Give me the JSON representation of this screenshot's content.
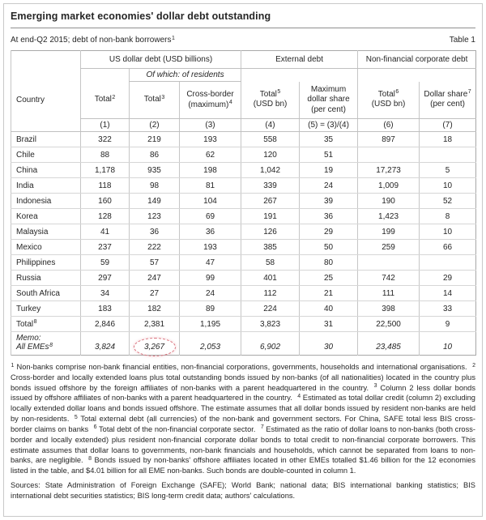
{
  "header": {
    "title": "Emerging market economies' dollar debt outstanding",
    "subtitle": "At end-Q2 2015; debt of non-bank borrowers",
    "subtitle_sup": "1",
    "table_label": "Table 1"
  },
  "table": {
    "country_header": "Country",
    "groups": {
      "usd_debt": "US dollar debt (USD billions)",
      "of_which": "Of which: of residents",
      "external": "External debt",
      "nonfin": "Non-financial corporate debt"
    },
    "columns": [
      {
        "title": "Total",
        "sup": "2",
        "note": ""
      },
      {
        "title": "Total",
        "sup": "3",
        "note": ""
      },
      {
        "title": "Cross-border",
        "sup": "4",
        "note": "(maximum)"
      },
      {
        "title": "Total",
        "sup": "5",
        "note": "(USD bn)"
      },
      {
        "title": "Maximum dollar share",
        "sup": "",
        "note": "(per cent)"
      },
      {
        "title": "Total",
        "sup": "6",
        "note": "(USD bn)"
      },
      {
        "title": "Dollar share",
        "sup": "7",
        "note": "(per cent)"
      }
    ],
    "column_numbers": [
      "(1)",
      "(2)",
      "(3)",
      "(4)",
      "(5) = (3)/(4)",
      "(6)",
      "(7)"
    ],
    "rows": [
      {
        "country": "Brazil",
        "values": [
          "322",
          "219",
          "193",
          "558",
          "35",
          "897",
          "18"
        ]
      },
      {
        "country": "Chile",
        "values": [
          "88",
          "86",
          "62",
          "120",
          "51",
          "",
          ""
        ]
      },
      {
        "country": "China",
        "values": [
          "1,178",
          "935",
          "198",
          "1,042",
          "19",
          "17,273",
          "5"
        ]
      },
      {
        "country": "India",
        "values": [
          "118",
          "98",
          "81",
          "339",
          "24",
          "1,009",
          "10"
        ]
      },
      {
        "country": "Indonesia",
        "values": [
          "160",
          "149",
          "104",
          "267",
          "39",
          "190",
          "52"
        ]
      },
      {
        "country": "Korea",
        "values": [
          "128",
          "123",
          "69",
          "191",
          "36",
          "1,423",
          "8"
        ]
      },
      {
        "country": "Malaysia",
        "values": [
          "41",
          "36",
          "36",
          "126",
          "29",
          "199",
          "10"
        ]
      },
      {
        "country": "Mexico",
        "values": [
          "237",
          "222",
          "193",
          "385",
          "50",
          "259",
          "66"
        ]
      },
      {
        "country": "Philippines",
        "values": [
          "59",
          "57",
          "47",
          "58",
          "80",
          "",
          ""
        ]
      },
      {
        "country": "Russia",
        "values": [
          "297",
          "247",
          "99",
          "401",
          "25",
          "742",
          "29"
        ]
      },
      {
        "country": "South Africa",
        "values": [
          "34",
          "27",
          "24",
          "112",
          "21",
          "111",
          "14"
        ]
      },
      {
        "country": "Turkey",
        "values": [
          "183",
          "182",
          "89",
          "224",
          "40",
          "398",
          "33"
        ]
      }
    ],
    "total_row": {
      "label": "Total",
      "sup": "8",
      "values": [
        "2,846",
        "2,381",
        "1,195",
        "3,823",
        "31",
        "22,500",
        "9"
      ]
    },
    "memo_row": {
      "label_line1": "Memo:",
      "label_line2": "All EMEs",
      "sup": "8",
      "values": [
        "3,824",
        "3,267",
        "2,053",
        "6,902",
        "30",
        "23,485",
        "10"
      ]
    },
    "annotation": {
      "shape": "dashed-ellipse",
      "color": "#d9707b",
      "target_value": "3,267"
    }
  },
  "footnotes": [
    {
      "sup": "1",
      "text": "Non-banks comprise non-bank financial entities, non-financial corporations, governments, households and international organisations."
    },
    {
      "sup": "2",
      "text": "Cross-border and locally extended loans plus total outstanding bonds issued by non-banks (of all nationalities) located in the country plus bonds issued offshore by the foreign affiliates of non-banks with a parent headquartered in the country."
    },
    {
      "sup": "3",
      "text": "Column 2 less dollar bonds issued by offshore affiliates of non-banks with a parent headquartered in the country."
    },
    {
      "sup": "4",
      "text": "Estimated as total dollar credit (column 2) excluding locally extended dollar loans and bonds issued offshore. The estimate assumes that all dollar bonds issued by resident non-banks are held by non-residents."
    },
    {
      "sup": "5",
      "text": "Total external debt (all currencies) of the non-bank and government sectors. For China, SAFE total less BIS cross-border claims on banks"
    },
    {
      "sup": "6",
      "text": "Total debt of the non-financial corporate sector."
    },
    {
      "sup": "7",
      "text": "Estimated as the ratio of dollar loans to non-banks (both cross-border and locally extended) plus resident non-financial corporate dollar bonds to total credit to non-financial corporate borrowers. This estimate assumes that dollar loans to governments, non-bank financials and households, which cannot be separated from loans to non-banks, are negligible."
    },
    {
      "sup": "8",
      "text": "Bonds issued by non-banks' offshore affiliates located in other EMEs totalled $1.46 billion for the 12 economies listed in the table, and $4.01 billion for all EME non-banks. Such bonds are double-counted in column 1."
    }
  ],
  "sources": "Sources: State Administration of Foreign Exchange (SAFE); World Bank; national data; BIS international banking statistics; BIS international debt securities statistics; BIS long-term credit data; authors' calculations."
}
